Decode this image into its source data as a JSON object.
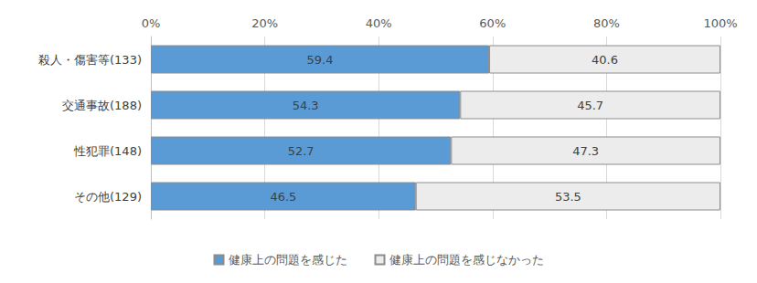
{
  "chart_data": {
    "type": "bar",
    "orientation": "horizontal",
    "stacked": true,
    "data_labels": true,
    "grid": true,
    "legend": "bottom",
    "categories": [
      "殺人・傷害等(133)",
      "交通事故(188)",
      "性犯罪(148)",
      "その他(129)"
    ],
    "series": [
      {
        "name": "健康上の問題を感じた",
        "color": "#5b9bd5",
        "values": [
          59.4,
          54.3,
          52.7,
          46.5
        ]
      },
      {
        "name": "健康上の問題を感じなかった",
        "color": "#ececec",
        "values": [
          40.6,
          45.7,
          47.3,
          53.5
        ]
      }
    ],
    "xlim": [
      0,
      100
    ],
    "xticks": [
      {
        "value": 0,
        "label": "0%"
      },
      {
        "value": 20,
        "label": "20%"
      },
      {
        "value": 40,
        "label": "40%"
      },
      {
        "value": 60,
        "label": "60%"
      },
      {
        "value": 80,
        "label": "80%"
      },
      {
        "value": 100,
        "label": "100%"
      }
    ]
  }
}
